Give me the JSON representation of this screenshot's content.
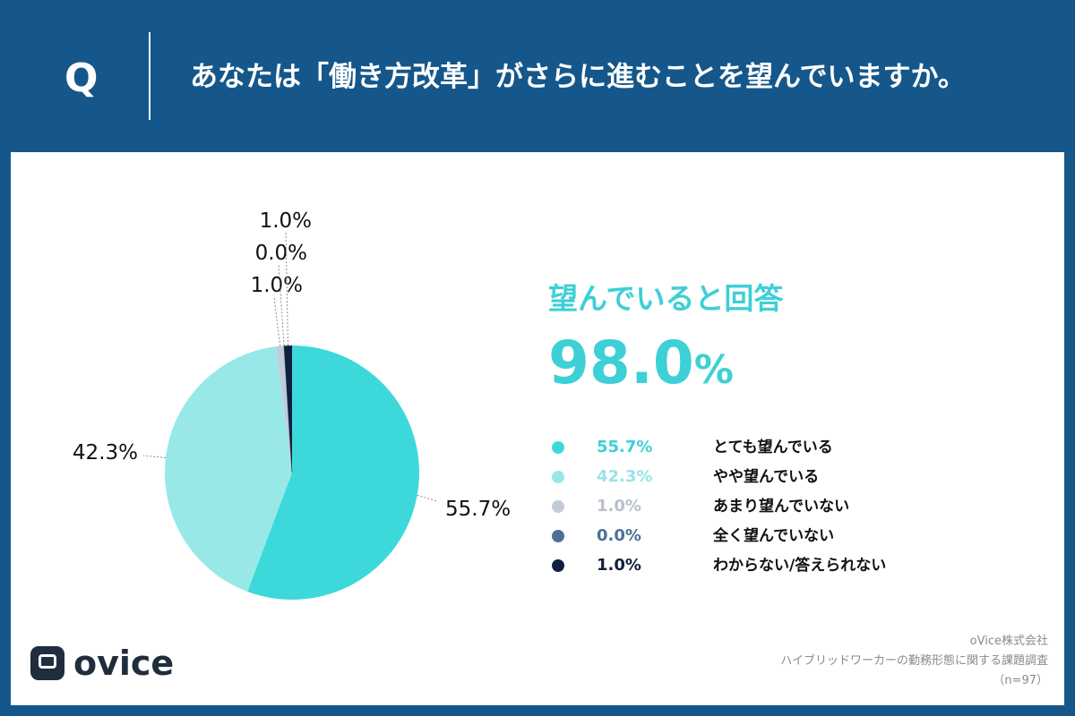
{
  "header": {
    "q_mark": "Q",
    "question": "あなたは「働き方改革」がさらに進むことを望んでいますか。"
  },
  "summary": {
    "title": "望んでいると回答",
    "value": "98.0",
    "unit": "%"
  },
  "source": {
    "company": "oVice株式会社",
    "survey": "ハイブリッドワーカーの勤務形態に関する課題調査",
    "sample": "（n=97）"
  },
  "logo": {
    "text": "ovice",
    "icon": "ovice-logo-icon"
  },
  "colors": {
    "header_bg": "#15578a",
    "accent": "#3dd0d6"
  },
  "legend": [
    {
      "pct": "55.7%",
      "label": "とても望んでいる",
      "color": "#3dd9da",
      "pct_color": "#3dd0d6"
    },
    {
      "pct": "42.3%",
      "label": "やや望んでいる",
      "color": "#98e8e8",
      "pct_color": "#98e3e6"
    },
    {
      "pct": "1.0%",
      "label": "あまり望んでいない",
      "color": "#c3cbd8",
      "pct_color": "#b8c0cc"
    },
    {
      "pct": "0.0%",
      "label": "全く望んでいない",
      "color": "#4e6f95",
      "pct_color": "#4e6f95"
    },
    {
      "pct": "1.0%",
      "label": "わからない/答えられない",
      "color": "#0f1f3d",
      "pct_color": "#0f1f3d"
    }
  ],
  "chart_data": {
    "type": "pie",
    "title": "あなたは「働き方改革」がさらに進むことを望んでいますか。",
    "categories": [
      "とても望んでいる",
      "やや望んでいる",
      "あまり望んでいない",
      "全く望んでいない",
      "わからない/答えられない"
    ],
    "values": [
      55.7,
      42.3,
      1.0,
      0.0,
      1.0
    ],
    "value_labels": [
      "55.7%",
      "42.3%",
      "1.0%",
      "0.0%",
      "1.0%"
    ],
    "colors": [
      "#3dd9da",
      "#98e8e8",
      "#c3cbd8",
      "#4e6f95",
      "#0f1f3d"
    ],
    "start": "12 o'clock",
    "direction": "clockwise",
    "legend_position": "right"
  }
}
